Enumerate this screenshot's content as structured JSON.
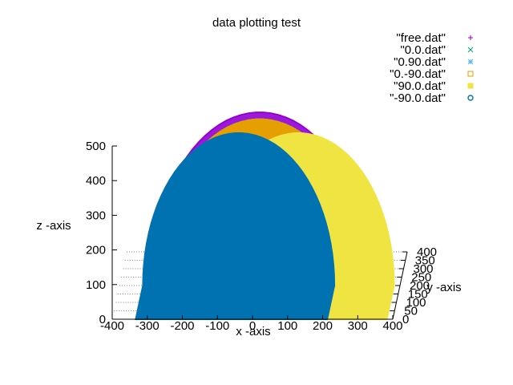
{
  "chart_data": {
    "type": "scatter",
    "title": "data plotting test",
    "xlabel": "x -axis",
    "ylabel": "y -axis",
    "zlabel": "z -axis",
    "xlim": [
      -400,
      400
    ],
    "ylim": [
      0,
      400
    ],
    "zlim": [
      0,
      500
    ],
    "x_ticks": [
      "-400",
      "-300",
      "-200",
      "-100",
      "0",
      "100",
      "200",
      "300",
      "400"
    ],
    "y_ticks": [
      "0",
      "50",
      "100",
      "150",
      "200",
      "250",
      "300",
      "350",
      "400"
    ],
    "z_ticks": [
      "0",
      "100",
      "200",
      "300",
      "400",
      "500"
    ],
    "grid": true,
    "legend_position": "top-right",
    "series": [
      {
        "name": "\"free.dat\"",
        "marker": "+",
        "color": "#9400d3",
        "center_x": 0,
        "radius": 500
      },
      {
        "name": "\"0.0.dat\"",
        "marker": "x",
        "color": "#009e73",
        "center_x": 0,
        "radius": 480
      },
      {
        "name": "\"0.90.dat\"",
        "marker": "*",
        "color": "#56b4e9",
        "center_x": 0,
        "radius": 480
      },
      {
        "name": "\"0.-90.dat\"",
        "marker": "square-open",
        "color": "#e69f00",
        "center_x": 0,
        "radius": 480
      },
      {
        "name": "\"90.0.dat\"",
        "marker": "square-filled",
        "color": "#f0e442",
        "center_x": 110,
        "radius": 440
      },
      {
        "name": "\"-90.0.dat\"",
        "marker": "circle-open",
        "color": "#0072b2",
        "center_x": -60,
        "radius": 440
      }
    ]
  }
}
